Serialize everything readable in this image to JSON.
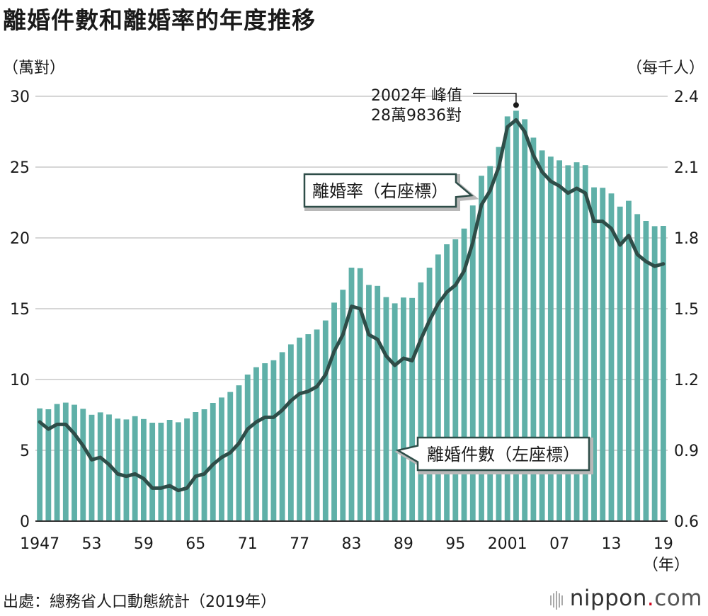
{
  "title": "離婚件數和離婚率的年度推移",
  "source": "出處：總務省人口動態統計（2019年）",
  "logo": {
    "main": "nippon",
    "dot": ".",
    "tld": "com"
  },
  "colors": {
    "bar": "#5fb0a8",
    "line": "#2e4d48",
    "grid": "#c8c8c8",
    "axis": "#333333"
  },
  "chart_data": {
    "type": "bar+line",
    "title": "離婚件數和離婚率的年度推移",
    "left_axis": {
      "unit_label": "（萬對）",
      "range": [
        0,
        30
      ],
      "ticks": [
        "0",
        "5",
        "10",
        "15",
        "20",
        "25",
        "30"
      ]
    },
    "right_axis": {
      "unit_label": "（每千人）",
      "range": [
        0.6,
        2.4
      ],
      "ticks": [
        "0.6",
        "0.9",
        "1.2",
        "1.5",
        "1.8",
        "2.1",
        "2.4"
      ]
    },
    "x_axis": {
      "unit_label": "（年）",
      "tick_labels": [
        "1947",
        "53",
        "59",
        "65",
        "71",
        "77",
        "83",
        "89",
        "95",
        "2001",
        "07",
        "13",
        "19"
      ]
    },
    "years": [
      1947,
      1948,
      1949,
      1950,
      1951,
      1952,
      1953,
      1954,
      1955,
      1956,
      1957,
      1958,
      1959,
      1960,
      1961,
      1962,
      1963,
      1964,
      1965,
      1966,
      1967,
      1968,
      1969,
      1970,
      1971,
      1972,
      1973,
      1974,
      1975,
      1976,
      1977,
      1978,
      1979,
      1980,
      1981,
      1982,
      1983,
      1984,
      1985,
      1986,
      1987,
      1988,
      1989,
      1990,
      1991,
      1992,
      1993,
      1994,
      1995,
      1996,
      1997,
      1998,
      1999,
      2000,
      2001,
      2002,
      2003,
      2004,
      2005,
      2006,
      2007,
      2008,
      2009,
      2010,
      2011,
      2012,
      2013,
      2014,
      2015,
      2016,
      2017,
      2018,
      2019
    ],
    "series": [
      {
        "name": "離婚件數（左座標）",
        "axis": "left",
        "type": "bar",
        "values": [
          7.96,
          7.9,
          8.27,
          8.37,
          8.22,
          7.93,
          7.51,
          7.68,
          7.53,
          7.24,
          7.18,
          7.41,
          7.21,
          6.95,
          6.95,
          7.15,
          6.98,
          7.25,
          7.7,
          7.9,
          8.35,
          8.73,
          9.12,
          9.59,
          10.35,
          10.87,
          11.15,
          11.36,
          11.93,
          12.48,
          12.96,
          13.2,
          13.53,
          14.17,
          15.43,
          16.34,
          17.9,
          17.86,
          16.68,
          16.61,
          15.82,
          15.38,
          15.79,
          15.76,
          16.86,
          17.9,
          18.83,
          19.55,
          19.9,
          20.66,
          22.29,
          24.39,
          25.07,
          26.42,
          28.58,
          28.98,
          28.38,
          27.08,
          26.18,
          25.74,
          25.48,
          25.13,
          25.34,
          25.14,
          23.57,
          23.54,
          23.14,
          22.21,
          22.62,
          21.68,
          21.2,
          20.83,
          20.85
        ]
      },
      {
        "name": "離婚率（右座標）",
        "axis": "right",
        "type": "line",
        "values": [
          1.02,
          0.99,
          1.01,
          1.01,
          0.97,
          0.92,
          0.86,
          0.87,
          0.84,
          0.8,
          0.79,
          0.8,
          0.78,
          0.74,
          0.74,
          0.75,
          0.73,
          0.74,
          0.79,
          0.8,
          0.84,
          0.87,
          0.89,
          0.93,
          0.99,
          1.02,
          1.04,
          1.04,
          1.07,
          1.11,
          1.14,
          1.15,
          1.17,
          1.22,
          1.32,
          1.39,
          1.51,
          1.5,
          1.39,
          1.37,
          1.3,
          1.26,
          1.29,
          1.28,
          1.37,
          1.45,
          1.52,
          1.57,
          1.6,
          1.66,
          1.78,
          1.94,
          2.0,
          2.1,
          2.27,
          2.3,
          2.25,
          2.15,
          2.08,
          2.04,
          2.02,
          1.99,
          2.01,
          1.99,
          1.87,
          1.87,
          1.84,
          1.77,
          1.81,
          1.73,
          1.7,
          1.68,
          1.69
        ]
      }
    ],
    "annotations": {
      "peak": [
        "2002年 峰值",
        "28萬9836對"
      ],
      "rate_label": "離婚率（右座標）",
      "count_label": "離婚件數（左座標）"
    }
  }
}
